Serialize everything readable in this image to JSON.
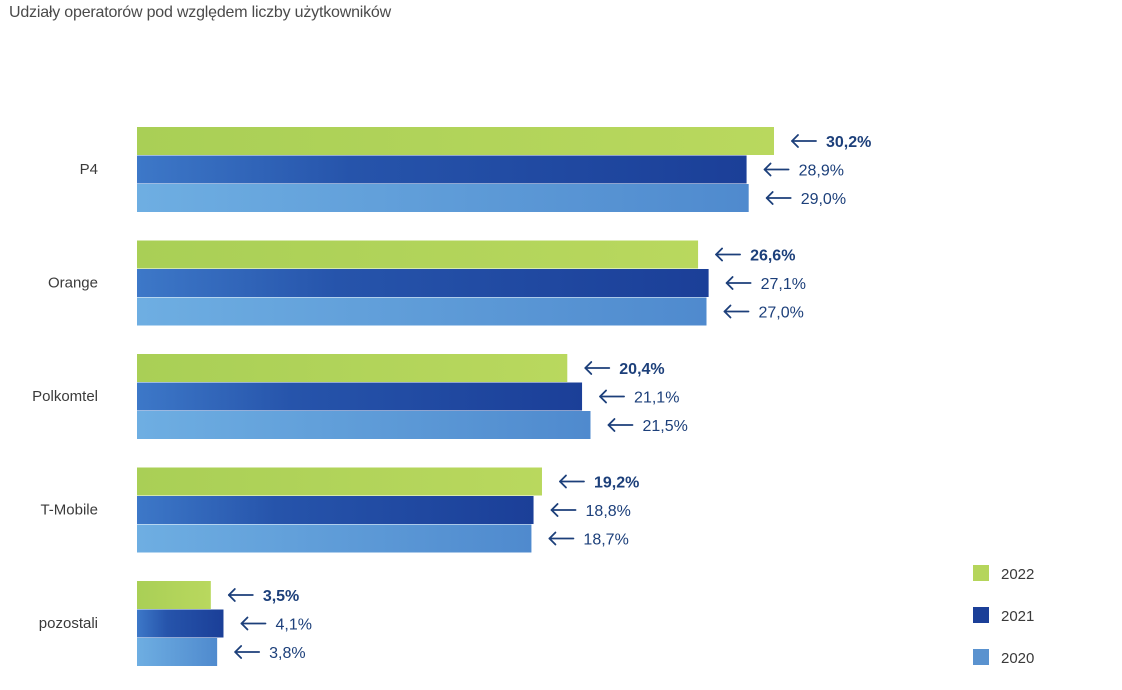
{
  "title": "Udziały operatorów pod względem liczby użytkowników",
  "chart_data": {
    "type": "bar",
    "orientation": "horizontal",
    "categories": [
      "P4",
      "Orange",
      "Polkomtel",
      "T-Mobile",
      "pozostali"
    ],
    "series": [
      {
        "name": "2022",
        "values": [
          30.2,
          26.6,
          20.4,
          19.2,
          3.5
        ],
        "labels": [
          "30,2%",
          "26,6%",
          "20,4%",
          "19,2%",
          "3,5%"
        ],
        "color": "#b5d55b",
        "color_dark": "#b5d55b",
        "label_bold": true
      },
      {
        "name": "2021",
        "values": [
          28.9,
          27.1,
          21.1,
          18.8,
          4.1
        ],
        "labels": [
          "28,9%",
          "27,1%",
          "21,1%",
          "18,8%",
          "4,1%"
        ],
        "color": "#1b3f98",
        "color_dark": "#1b3f98",
        "label_bold": false
      },
      {
        "name": "2020",
        "values": [
          29.0,
          27.0,
          21.5,
          18.7,
          3.8
        ],
        "labels": [
          "29,0%",
          "27,0%",
          "21,5%",
          "18,7%",
          "3,8%"
        ],
        "color": "#5a92cf",
        "color_dark": "#5a92cf",
        "label_bold": false
      }
    ],
    "legend": {
      "position": "bottom-right",
      "entries": [
        "2022",
        "2021",
        "2020"
      ]
    },
    "grid": false,
    "xlim": [
      0,
      30.2
    ]
  }
}
